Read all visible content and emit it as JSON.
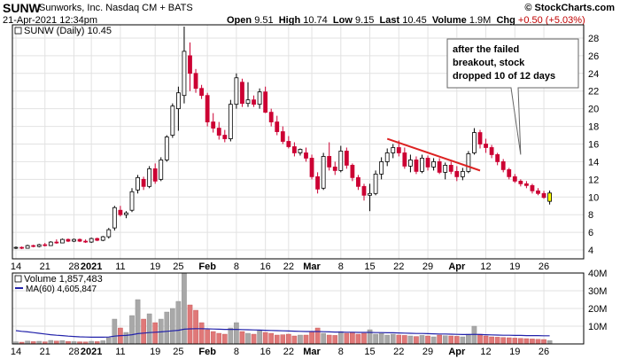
{
  "header": {
    "ticker": "SUNW",
    "company": "Sunworks, Inc. Nasdaq CM + BATS",
    "brand": "© StockCharts.com",
    "date": "21-Apr-2021 12:34pm",
    "open_label": "Open",
    "open": "9.51",
    "high_label": "High",
    "high": "10.74",
    "low_label": "Low",
    "low": "9.15",
    "last_label": "Last",
    "last": "10.45",
    "volume_label": "Volume",
    "volume": "1.9M",
    "chg_label": "Chg",
    "chg": "+0.50 (+5.03%)"
  },
  "price_legend": "SUNW (Daily) 10.45",
  "volume_legend": "Volume 1,857,483",
  "ma_legend": "MA(60) 4,605,847",
  "annotation": "after the failed\nbreakout, stock\ndropped 10 of 12 days",
  "colors": {
    "up": "#000000",
    "down": "#cc0033",
    "trendline": "#dd2222",
    "ma": "#2222aa",
    "vol_up": "#a8a8a8",
    "vol_down": "#e07878",
    "highlight": "#ffff00"
  },
  "chart_data": [
    {
      "type": "candlestick",
      "series": [
        {
          "name": "SUNW (Daily)"
        }
      ],
      "ylim": [
        3,
        29.5
      ],
      "yticks": [
        4,
        6,
        8,
        10,
        12,
        14,
        16,
        18,
        20,
        22,
        24,
        26,
        28
      ],
      "xticks": [
        "14",
        "21",
        "28",
        "2021",
        "11",
        "19",
        "25",
        "Feb",
        "8",
        "16",
        "22",
        "Mar",
        "8",
        "15",
        "22",
        "29",
        "Apr",
        "12",
        "19",
        "26"
      ],
      "candles": [
        [
          4.2,
          4.4,
          4.1,
          4.3
        ],
        [
          4.3,
          4.4,
          4.1,
          4.2
        ],
        [
          4.2,
          4.6,
          4.2,
          4.5
        ],
        [
          4.5,
          4.6,
          4.3,
          4.4
        ],
        [
          4.4,
          4.7,
          4.3,
          4.6
        ],
        [
          4.6,
          4.8,
          4.4,
          4.5
        ],
        [
          4.5,
          5.0,
          4.5,
          4.9
        ],
        [
          4.9,
          5.2,
          4.7,
          4.8
        ],
        [
          4.8,
          5.3,
          4.8,
          5.2
        ],
        [
          5.2,
          5.3,
          4.9,
          5.0
        ],
        [
          5.0,
          5.3,
          4.9,
          5.2
        ],
        [
          5.2,
          5.3,
          4.9,
          5.0
        ],
        [
          5.0,
          5.2,
          4.8,
          4.9
        ],
        [
          4.9,
          5.4,
          4.8,
          5.3
        ],
        [
          5.3,
          5.4,
          5.0,
          5.1
        ],
        [
          5.1,
          5.6,
          5.0,
          5.5
        ],
        [
          5.5,
          6.5,
          5.3,
          6.3
        ],
        [
          6.5,
          9.0,
          6.2,
          8.8
        ],
        [
          8.5,
          9.0,
          7.8,
          8.0
        ],
        [
          8.0,
          8.4,
          7.6,
          8.2
        ],
        [
          8.5,
          11.0,
          8.3,
          10.6
        ],
        [
          10.8,
          12.5,
          10.4,
          12.2
        ],
        [
          12.0,
          12.3,
          10.8,
          11.2
        ],
        [
          11.2,
          13.5,
          11.0,
          13.2
        ],
        [
          13.2,
          13.8,
          11.5,
          11.8
        ],
        [
          12.0,
          14.5,
          11.8,
          14.2
        ],
        [
          14.2,
          17.0,
          14.0,
          16.8
        ],
        [
          17.0,
          20.6,
          16.7,
          20.3
        ],
        [
          20.0,
          22.5,
          17.5,
          21.8
        ],
        [
          21.5,
          29.3,
          20.6,
          26.5
        ],
        [
          26.0,
          27.5,
          22.0,
          24.0
        ],
        [
          24.0,
          24.5,
          21.8,
          22.3
        ],
        [
          22.3,
          22.7,
          21.1,
          21.5
        ],
        [
          21.5,
          21.8,
          18.0,
          18.5
        ],
        [
          18.5,
          19.5,
          17.3,
          17.8
        ],
        [
          17.8,
          18.5,
          16.5,
          17.0
        ],
        [
          17.0,
          17.6,
          16.2,
          16.6
        ],
        [
          16.6,
          21.0,
          16.3,
          20.5
        ],
        [
          20.5,
          24.0,
          20.0,
          23.5
        ],
        [
          23.0,
          23.4,
          20.2,
          20.6
        ],
        [
          20.6,
          23.0,
          20.2,
          21.0
        ],
        [
          21.0,
          21.5,
          20.2,
          20.5
        ],
        [
          20.5,
          22.3,
          20.0,
          21.9
        ],
        [
          21.9,
          22.5,
          19.5,
          19.6
        ],
        [
          19.6,
          20.0,
          18.0,
          18.5
        ],
        [
          18.5,
          19.2,
          17.0,
          17.4
        ],
        [
          17.4,
          18.0,
          16.0,
          16.3
        ],
        [
          16.3,
          16.9,
          15.5,
          15.7
        ],
        [
          15.7,
          16.2,
          14.6,
          15.0
        ],
        [
          15.0,
          15.5,
          14.7,
          15.4
        ],
        [
          15.0,
          15.6,
          14.0,
          14.4
        ],
        [
          14.4,
          14.8,
          12.0,
          12.3
        ],
        [
          12.3,
          12.8,
          10.4,
          10.9
        ],
        [
          11.0,
          15.0,
          10.8,
          14.6
        ],
        [
          14.6,
          16.2,
          13.0,
          13.4
        ],
        [
          13.4,
          14.0,
          12.5,
          13.0
        ],
        [
          13.0,
          15.8,
          12.8,
          15.2
        ],
        [
          15.2,
          15.6,
          13.2,
          13.6
        ],
        [
          13.6,
          13.8,
          11.8,
          12.2
        ],
        [
          12.2,
          12.5,
          10.8,
          11.2
        ],
        [
          11.2,
          11.5,
          9.6,
          10.2
        ],
        [
          10.2,
          11.5,
          8.4,
          10.4
        ],
        [
          10.4,
          13.0,
          10.2,
          12.6
        ],
        [
          12.6,
          14.5,
          12.0,
          14.0
        ],
        [
          14.0,
          15.5,
          13.5,
          15.0
        ],
        [
          15.0,
          16.0,
          14.4,
          15.6
        ],
        [
          15.6,
          16.4,
          14.6,
          15.0
        ],
        [
          15.0,
          15.6,
          13.2,
          13.5
        ],
        [
          13.5,
          14.8,
          12.8,
          14.2
        ],
        [
          14.2,
          14.6,
          12.6,
          12.9
        ],
        [
          12.9,
          14.8,
          12.7,
          14.4
        ],
        [
          14.4,
          14.7,
          13.0,
          13.4
        ],
        [
          13.4,
          14.4,
          13.0,
          14.0
        ],
        [
          14.0,
          14.4,
          12.6,
          12.8
        ],
        [
          12.8,
          13.9,
          12.0,
          13.6
        ],
        [
          13.6,
          14.0,
          12.6,
          12.9
        ],
        [
          12.9,
          13.5,
          11.8,
          12.3
        ],
        [
          12.3,
          13.3,
          11.9,
          12.9
        ],
        [
          12.9,
          15.2,
          12.7,
          14.9
        ],
        [
          15.0,
          17.8,
          14.8,
          17.3
        ],
        [
          17.3,
          17.6,
          15.5,
          16.0
        ],
        [
          16.0,
          16.6,
          15.0,
          15.6
        ],
        [
          15.6,
          15.9,
          14.4,
          14.8
        ],
        [
          14.8,
          15.0,
          13.6,
          14.0
        ],
        [
          14.0,
          14.3,
          12.8,
          13.1
        ],
        [
          13.1,
          13.3,
          12.0,
          12.3
        ],
        [
          12.3,
          12.6,
          11.6,
          11.8
        ],
        [
          11.8,
          12.0,
          11.2,
          11.5
        ],
        [
          11.5,
          11.8,
          11.0,
          11.3
        ],
        [
          11.3,
          11.5,
          10.4,
          10.7
        ],
        [
          10.7,
          11.0,
          10.2,
          10.4
        ],
        [
          10.4,
          10.7,
          9.8,
          9.95
        ],
        [
          9.51,
          10.74,
          9.15,
          10.45
        ]
      ]
    },
    {
      "type": "bar",
      "series": [
        {
          "name": "Volume"
        },
        {
          "name": "MA(60)"
        }
      ],
      "ylim": [
        0,
        40
      ],
      "yticks_labels": [
        "10M",
        "20M",
        "30M",
        "40M"
      ],
      "volume_millions": [
        1.2,
        1.0,
        1.6,
        1.3,
        1.5,
        1.2,
        2.0,
        1.6,
        1.9,
        1.4,
        1.3,
        1.2,
        1.1,
        1.5,
        1.3,
        1.8,
        3.5,
        14.0,
        9.0,
        6.5,
        16.0,
        25.0,
        14.0,
        17.0,
        12.0,
        14.0,
        18.0,
        20.0,
        24.0,
        42.0,
        22.0,
        19.0,
        12.0,
        8.0,
        7.0,
        6.0,
        5.5,
        9.0,
        12.0,
        7.0,
        6.0,
        5.5,
        7.5,
        6.5,
        6.0,
        5.0,
        5.2,
        5.5,
        4.5,
        5.0,
        5.0,
        7.0,
        9.0,
        6.0,
        5.0,
        4.8,
        7.0,
        6.0,
        6.5,
        5.5,
        6.0,
        8.0,
        5.5,
        6.0,
        5.0,
        5.5,
        5.0,
        4.8,
        4.5,
        4.2,
        4.8,
        4.5,
        4.0,
        5.0,
        4.6,
        4.5,
        4.3,
        4.0,
        5.5,
        10.0,
        5.5,
        4.5,
        4.0,
        3.8,
        3.6,
        3.5,
        3.3,
        3.1,
        3.0,
        2.8,
        2.6,
        2.5,
        1.9
      ],
      "ma60_millions": [
        7.5,
        7.1,
        6.8,
        6.4,
        6.0,
        5.6,
        5.2,
        4.9,
        4.7,
        4.4,
        4.2,
        4.0,
        3.9,
        3.8,
        3.8,
        3.8,
        3.9,
        4.4,
        4.7,
        4.8,
        5.2,
        5.8,
        6.1,
        6.4,
        6.6,
        6.8,
        7.1,
        7.4,
        7.7,
        8.3,
        8.5,
        8.6,
        8.6,
        8.5,
        8.4,
        8.3,
        8.2,
        8.2,
        8.2,
        8.1,
        8.0,
        7.9,
        7.8,
        7.7,
        7.6,
        7.5,
        7.4,
        7.3,
        7.2,
        7.1,
        7.0,
        7.0,
        7.0,
        6.9,
        6.8,
        6.7,
        6.7,
        6.6,
        6.6,
        6.5,
        6.5,
        6.5,
        6.4,
        6.4,
        6.3,
        6.3,
        6.2,
        6.1,
        6.0,
        5.9,
        5.9,
        5.8,
        5.7,
        5.6,
        5.6,
        5.5,
        5.4,
        5.3,
        5.3,
        5.4,
        5.3,
        5.2,
        5.1,
        5.0,
        4.9,
        4.9,
        4.8,
        4.8,
        4.7,
        4.7,
        4.7,
        4.6,
        4.6
      ]
    }
  ]
}
